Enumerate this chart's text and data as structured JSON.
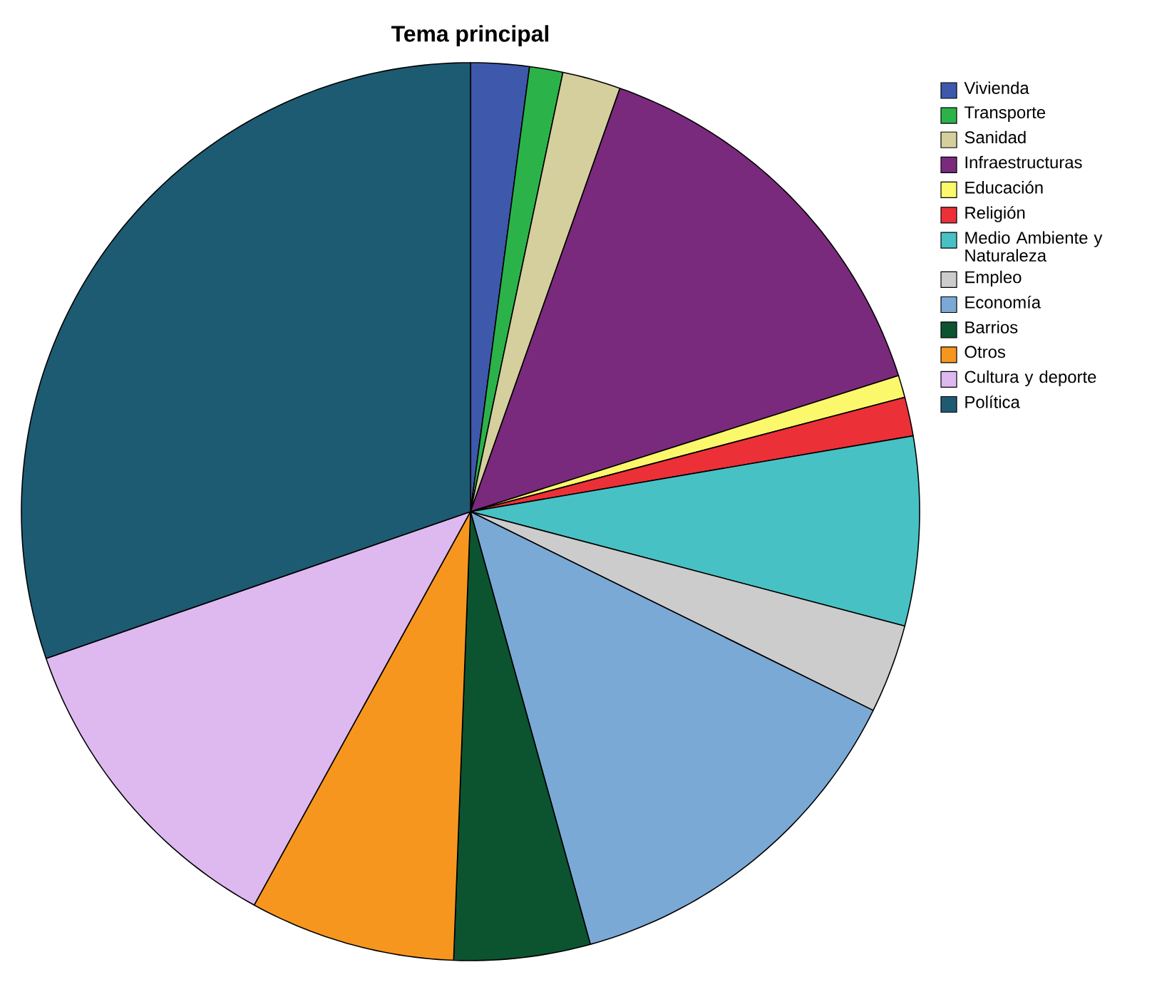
{
  "chart_data": {
    "type": "pie",
    "title": "Tema principal",
    "categories": [
      "Vivienda",
      "Transporte",
      "Sanidad",
      "Infraestructuras",
      "Educación",
      "Religión",
      "Medio Ambiente y Naturaleza",
      "Empleo",
      "Economía",
      "Barrios",
      "Otros",
      "Cultura y deporte",
      "Política"
    ],
    "values": [
      2.1,
      1.2,
      2.1,
      14.7,
      0.8,
      1.4,
      6.8,
      3.2,
      13.4,
      4.9,
      7.4,
      11.7,
      30.3
    ],
    "colors": [
      "#3e58ac",
      "#2bb34a",
      "#d4cf9c",
      "#7a2a7c",
      "#fbf86c",
      "#ec3038",
      "#48c1c4",
      "#cccccc",
      "#7ba9d6",
      "#0c5430",
      "#f7961e",
      "#ddb9f0",
      "#1d5b72"
    ],
    "legend": "right"
  }
}
